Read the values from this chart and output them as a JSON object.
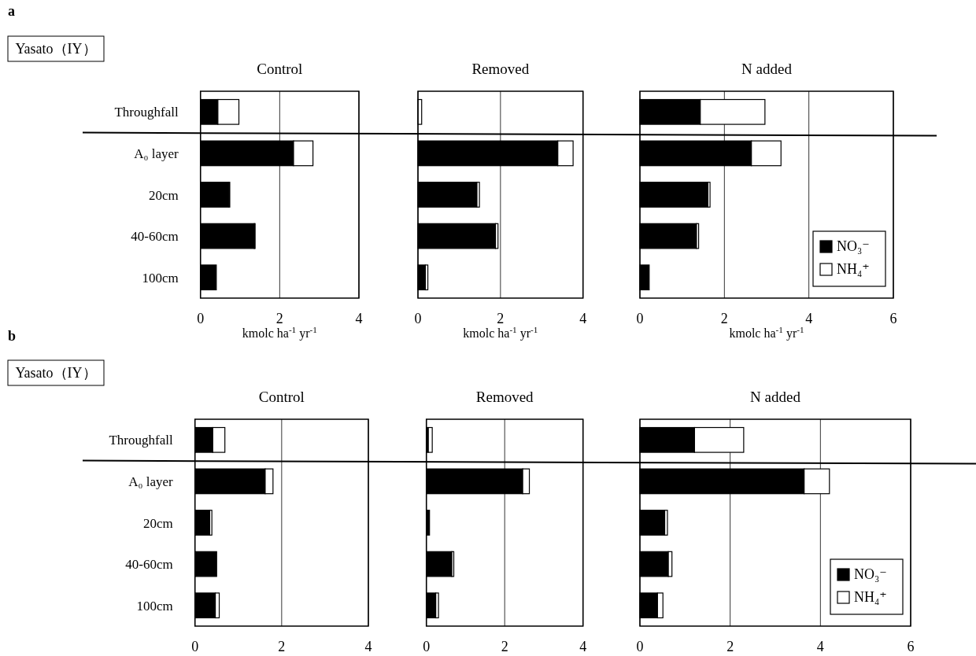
{
  "chart_data": [
    {
      "type": "bar",
      "orientation": "horizontal",
      "stacked": true,
      "title": "Control",
      "xlabel": "kmolc ha$^{-1}$ yr$^{-1}$",
      "annotations": [
        "a",
        "Yasato（IY）"
      ],
      "categories": [
        "Throughfall",
        "A₀ layer",
        "20cm",
        "40-60cm",
        "100cm"
      ],
      "xlim": [
        0,
        4
      ],
      "xticks": [
        0,
        2,
        4
      ],
      "grid": "x",
      "legend": false,
      "series": [
        {
          "color": "#000000",
          "values": [
            0.44,
            2.35,
            0.72,
            1.36,
            0.4
          ]
        },
        {
          "color": "#ffffff",
          "values": [
            0.53,
            0.49,
            0.02,
            0.02,
            null
          ]
        }
      ]
    },
    {
      "type": "bar",
      "orientation": "horizontal",
      "stacked": true,
      "title": "Removed",
      "xlabel": "kmolc ha$^{-1}$ yr$^{-1}$",
      "categories": [
        null,
        null,
        null,
        null,
        null
      ],
      "tick_labels": "x",
      "xlim": [
        0,
        4
      ],
      "xticks": [
        0,
        2,
        4
      ],
      "grid": "x",
      "legend": false,
      "series": [
        {
          "color": "#000000",
          "values": [
            null,
            3.39,
            1.43,
            1.88,
            0.18
          ]
        },
        {
          "color": "#ffffff",
          "values": [
            0.09,
            0.37,
            0.06,
            0.06,
            0.06
          ]
        }
      ]
    },
    {
      "type": "bar",
      "orientation": "horizontal",
      "stacked": true,
      "title": "N added",
      "xlabel": "kmolc ha$^{-1}$ yr$^{-1}$",
      "categories": [
        null,
        null,
        null,
        null,
        null
      ],
      "tick_labels": "x",
      "xlim": [
        0,
        6
      ],
      "xticks": [
        0,
        2,
        4,
        6
      ],
      "grid": "x",
      "legend": "bottom right",
      "series": [
        {
          "name": "NO₃⁻",
          "color": "#000000",
          "values": [
            1.43,
            2.64,
            1.61,
            1.34,
            0.22
          ]
        },
        {
          "name": "NH₄⁺",
          "color": "#ffffff",
          "values": [
            1.53,
            0.7,
            0.05,
            0.05,
            0.0
          ]
        }
      ]
    },
    {
      "type": "bar",
      "orientation": "horizontal",
      "stacked": true,
      "title": "Control",
      "annotations": [
        "b",
        "Yasato（IY）"
      ],
      "categories": [
        "Throughfall",
        "A₀ layer",
        "20cm",
        "40-60cm",
        "100cm"
      ],
      "xlim": [
        0,
        4
      ],
      "xticks": [
        0,
        2,
        4
      ],
      "grid": "x",
      "legend": false,
      "series": [
        {
          "color": "#000000",
          "values": [
            0.41,
            1.62,
            0.34,
            0.5,
            0.47
          ]
        },
        {
          "color": "#ffffff",
          "values": [
            0.28,
            0.18,
            0.05,
            0.0,
            0.09
          ]
        }
      ]
    },
    {
      "type": "bar",
      "orientation": "horizontal",
      "stacked": true,
      "title": "Removed",
      "categories": [
        null,
        null,
        null,
        null,
        null
      ],
      "tick_labels": "x",
      "xlim": [
        0,
        4
      ],
      "xticks": [
        0,
        2,
        4
      ],
      "grid": "x",
      "legend": false,
      "series": [
        {
          "color": "#000000",
          "values": [
            0.05,
            2.46,
            0.08,
            0.65,
            0.24
          ]
        },
        {
          "color": "#ffffff",
          "values": [
            0.1,
            0.17,
            null,
            0.05,
            0.07
          ]
        }
      ]
    },
    {
      "type": "bar",
      "orientation": "horizontal",
      "stacked": true,
      "title": "N added",
      "categories": [
        null,
        null,
        null,
        null,
        null
      ],
      "tick_labels": "x",
      "xlim": [
        0,
        6
      ],
      "xticks": [
        0,
        2,
        4,
        6
      ],
      "grid": "x",
      "legend": "bottom right",
      "series": [
        {
          "name": "NO₃⁻",
          "color": "#000000",
          "values": [
            1.21,
            3.64,
            0.55,
            0.63,
            0.39
          ]
        },
        {
          "name": "NH₄⁺",
          "color": "#ffffff",
          "values": [
            1.09,
            0.56,
            0.06,
            0.08,
            0.12
          ]
        }
      ]
    }
  ]
}
